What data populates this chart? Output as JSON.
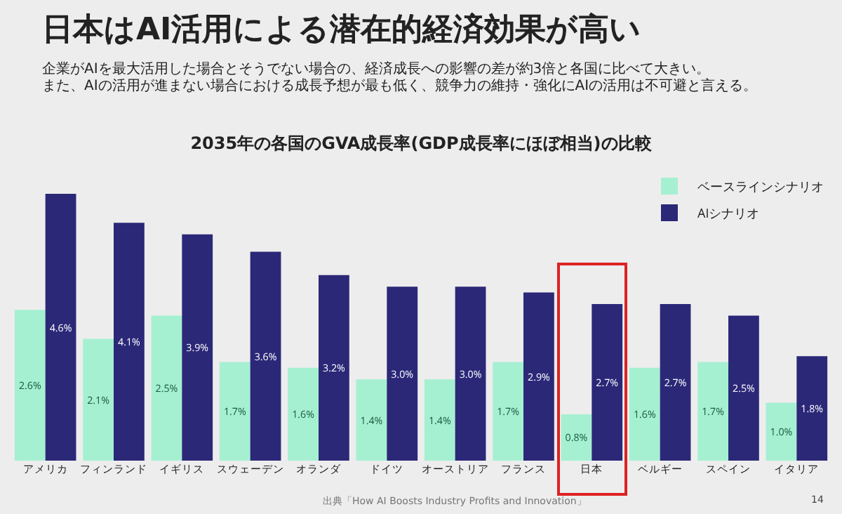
{
  "chart_data": {
    "type": "bar",
    "title": "日本はAI活用による潜在的経済効果が高い",
    "subtitle": "企業がAIを最大活用した場合とそうでない場合の、経済成長への影響の差が約3倍と各国に比べて大きい。",
    "xlabel": "2035年の各国のGVA成長率(GDP成長率にほぼ相当)の比較",
    "categories": [
      "アメリカ",
      "フィンランド",
      "イギリス",
      "スウェーデン",
      "オランダ",
      "ドイツ",
      "オーストリア",
      "フランス",
      "日本",
      "ベルギー",
      "スペイン",
      "イタリア"
    ],
    "series": [
      {
        "name": "ベースラインシナリオ",
        "color": "#a6f0d2",
        "values": [
          2.6,
          2.1,
          2.5,
          1.7,
          1.6,
          1.4,
          1.4,
          1.7,
          0.8,
          1.6,
          1.7,
          1.0
        ],
        "value_labels": [
          "2.6%",
          "2.1%",
          "2.5%",
          "1.7%",
          "1.6%",
          "1.4%",
          "1.4%",
          "1.7%",
          "0.8%",
          "1.6%",
          "1.7%",
          "1.0%"
        ]
      },
      {
        "name": "AIシナリオ",
        "color": "#2b2878",
        "values": [
          4.6,
          4.1,
          3.9,
          3.6,
          3.2,
          3.0,
          3.0,
          2.9,
          2.7,
          2.7,
          2.5,
          1.8
        ],
        "value_labels": [
          "4.6%",
          "4.1%",
          "3.9%",
          "3.6%",
          "3.2%",
          "3.0%",
          "3.0%",
          "2.9%",
          "2.7%",
          "2.7%",
          "2.5%",
          "1.8%"
        ]
      }
    ],
    "legend": "top right",
    "annotations": [
      "また、AIの活用が進まない場合における成長予想が最も低く、競争力の維持・強化にAIの活用は不可避と言える。",
      "出典「How AI Boosts Industry Profits and Innovation」",
      "14"
    ]
  }
}
